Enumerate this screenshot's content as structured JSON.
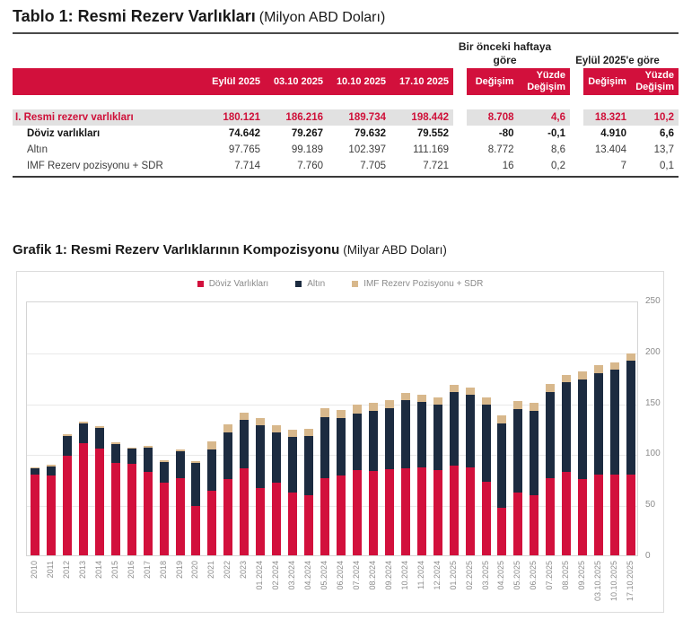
{
  "table": {
    "title": "Tablo 1: Resmi Rezerv Varlıkları",
    "unit": "(Milyon ABD Doları)",
    "group_headers": {
      "week": "Bir önceki haftaya göre",
      "month": "Eylül 2025'e göre"
    },
    "columns": [
      "Eylül 2025",
      "03.10 2025",
      "10.10 2025",
      "17.10 2025"
    ],
    "change_columns": [
      "Değişim",
      "Yüzde Değişim"
    ],
    "rows": [
      {
        "label": "I. Resmi rezerv varlıkları",
        "style": "total",
        "values": [
          "180.121",
          "186.216",
          "189.734",
          "198.442"
        ],
        "week_change": [
          "8.708",
          "4,6"
        ],
        "month_change": [
          "18.321",
          "10,2"
        ]
      },
      {
        "label": "Döviz varlıkları",
        "style": "bold",
        "values": [
          "74.642",
          "79.267",
          "79.632",
          "79.552"
        ],
        "week_change": [
          "-80",
          "-0,1"
        ],
        "month_change": [
          "4.910",
          "6,6"
        ]
      },
      {
        "label": "Altın",
        "style": "normal",
        "values": [
          "97.765",
          "99.189",
          "102.397",
          "111.169"
        ],
        "week_change": [
          "8.772",
          "8,6"
        ],
        "month_change": [
          "13.404",
          "13,7"
        ]
      },
      {
        "label": "IMF Rezerv pozisyonu + SDR",
        "style": "normal",
        "values": [
          "7.714",
          "7.760",
          "7.705",
          "7.721"
        ],
        "week_change": [
          "16",
          "0,2"
        ],
        "month_change": [
          "7",
          "0,1"
        ]
      }
    ]
  },
  "chart": {
    "title": "Grafik 1: Resmi Rezerv Varlıklarının Kompozisyonu",
    "unit": "(Milyar ABD Doları)"
  },
  "chart_data": {
    "type": "bar",
    "stacked": true,
    "title": "Grafik 1: Resmi Rezerv Varlıklarının Kompozisyonu (Milyar ABD Doları)",
    "legend_position": "top",
    "grid": true,
    "ylim": [
      0,
      250
    ],
    "yticks": [
      0,
      50,
      100,
      150,
      200,
      250
    ],
    "categories": [
      "2010",
      "2011",
      "2012",
      "2013",
      "2014",
      "2015",
      "2016",
      "2017",
      "2018",
      "2019",
      "2020",
      "2021",
      "2022",
      "2023",
      "01.2024",
      "02.2024",
      "03.2024",
      "04.2024",
      "05.2024",
      "06.2024",
      "07.2024",
      "08.2024",
      "09.2024",
      "10.2024",
      "11.2024",
      "12.2024",
      "01.2025",
      "02.2025",
      "03.2025",
      "04.2025",
      "05.2025",
      "06.2025",
      "07.2025",
      "08.2025",
      "09.2025",
      "03.10.2025",
      "10.10.2025",
      "17.10.2025"
    ],
    "series": [
      {
        "name": "Döviz Varlıkları",
        "color": "#d2103c",
        "values": [
          79,
          78,
          98,
          110,
          104.5,
          91,
          89.5,
          82,
          71,
          76,
          48.5,
          63,
          75,
          85,
          66,
          71,
          61.5,
          59,
          76,
          78,
          83.5,
          83,
          84.5,
          85,
          86.5,
          83.5,
          88,
          86,
          72,
          47,
          61.5,
          59,
          76,
          82,
          74.6,
          79.3,
          79.6,
          79.6
        ]
      },
      {
        "name": "Altın",
        "color": "#1c2b40",
        "values": [
          6,
          9.5,
          19.5,
          19.5,
          20.5,
          18,
          15,
          24,
          20.5,
          26,
          42,
          41,
          46,
          47.5,
          62,
          50,
          54.5,
          58,
          60,
          57,
          56,
          59,
          60,
          67,
          64,
          64,
          72,
          71.5,
          75.5,
          82.5,
          82,
          83,
          84.5,
          87.5,
          97.8,
          99.2,
          102.4,
          111.2
        ]
      },
      {
        "name": "IMF Rezerv Pozisyonu + SDR",
        "color": "#d8b88c",
        "values": [
          1,
          1,
          1.5,
          1.5,
          1.5,
          1.5,
          1.5,
          1.5,
          1.5,
          2,
          2,
          7.5,
          7.5,
          7.5,
          7,
          7,
          7,
          7,
          8,
          8,
          8,
          8,
          7.5,
          7,
          7.5,
          7.5,
          7,
          7.5,
          7.5,
          7.5,
          7.5,
          7.5,
          7.5,
          7.5,
          7.7,
          7.8,
          7.7,
          7.7
        ]
      }
    ]
  },
  "colors": {
    "accent_red": "#d2103c",
    "navy": "#1c2b40",
    "tan": "#d8b88c",
    "row_highlight": "#e1e1e1"
  }
}
